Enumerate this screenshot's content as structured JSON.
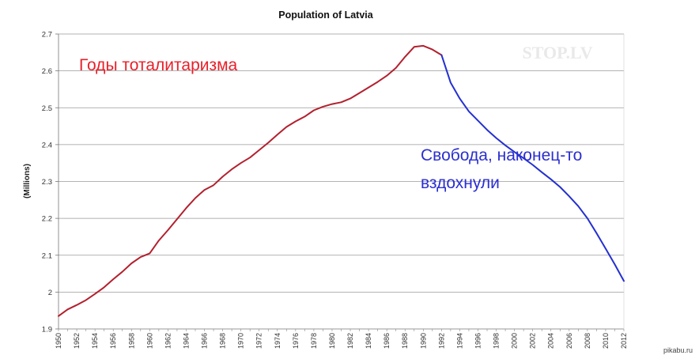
{
  "chart_data": {
    "type": "line",
    "title": "Population of Latvia",
    "xlabel": "",
    "ylabel": "(Millions)",
    "xlim": [
      1950,
      2012
    ],
    "ylim": [
      1.9,
      2.7
    ],
    "y_ticks": [
      "1.9",
      "2",
      "2.1",
      "2.2",
      "2.3",
      "2.4",
      "2.5",
      "2.6",
      "2.7"
    ],
    "x_ticks": [
      "1950",
      "1952",
      "1954",
      "1956",
      "1958",
      "1960",
      "1962",
      "1964",
      "1966",
      "1968",
      "1970",
      "1972",
      "1974",
      "1976",
      "1978",
      "1980",
      "1982",
      "1984",
      "1986",
      "1988",
      "1990",
      "1992",
      "1994",
      "1996",
      "1998",
      "2000",
      "2002",
      "2004",
      "2006",
      "2008",
      "2010",
      "2012"
    ],
    "grid": "horizontal",
    "series": [
      {
        "label": "Годы тоталитаризма",
        "color": "#b3202e",
        "x": [
          1950,
          1951,
          1952,
          1953,
          1954,
          1955,
          1956,
          1957,
          1958,
          1959,
          1960,
          1961,
          1962,
          1963,
          1964,
          1965,
          1966,
          1967,
          1968,
          1969,
          1970,
          1971,
          1972,
          1973,
          1974,
          1975,
          1976,
          1977,
          1978,
          1979,
          1980,
          1981,
          1982,
          1983,
          1984,
          1985,
          1986,
          1987,
          1988,
          1989,
          1990,
          1991,
          1992
        ],
        "values": [
          1.935,
          1.953,
          1.965,
          1.978,
          1.995,
          2.013,
          2.035,
          2.055,
          2.078,
          2.095,
          2.105,
          2.14,
          2.168,
          2.198,
          2.228,
          2.255,
          2.277,
          2.29,
          2.313,
          2.333,
          2.35,
          2.365,
          2.385,
          2.405,
          2.427,
          2.448,
          2.463,
          2.476,
          2.493,
          2.503,
          2.51,
          2.515,
          2.525,
          2.54,
          2.555,
          2.57,
          2.587,
          2.608,
          2.638,
          2.665,
          2.668,
          2.658,
          2.643
        ]
      },
      {
        "label": "Свобода, наконец-то вздохнули",
        "color": "#2430d0",
        "x": [
          1992,
          1993,
          1994,
          1995,
          1996,
          1997,
          1998,
          1999,
          2000,
          2001,
          2002,
          2003,
          2004,
          2005,
          2006,
          2007,
          2008,
          2009,
          2010,
          2011,
          2012
        ],
        "values": [
          2.643,
          2.568,
          2.525,
          2.49,
          2.465,
          2.44,
          2.418,
          2.398,
          2.38,
          2.363,
          2.345,
          2.325,
          2.306,
          2.285,
          2.26,
          2.233,
          2.2,
          2.16,
          2.118,
          2.075,
          2.03
        ]
      }
    ],
    "annotations": {
      "red_text": "Годы тоталитаризма",
      "blue_line1": "Свобода, наконец-то",
      "blue_line2": "вздохнули",
      "watermark": "STOP.LV",
      "source": "pikabu.ru"
    }
  }
}
